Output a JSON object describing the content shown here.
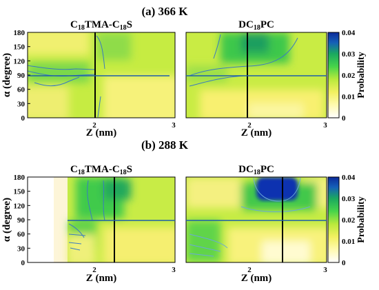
{
  "figure": {
    "panel_a_title": "(a) 366 K",
    "panel_b_title": "(b) 288 K"
  },
  "colorbar": {
    "label": "Probability",
    "min": 0,
    "max": 0.04,
    "ticks": [
      "0",
      "0.01",
      "0.02",
      "0.03",
      "0.04"
    ],
    "stops": [
      "#ffffff",
      "#fffab0",
      "#f2f060",
      "#b9ea3c",
      "#47d44a",
      "#1aa860",
      "#1560b8",
      "#0b2a9a"
    ]
  },
  "chart_data": [
    {
      "type": "heatmap",
      "panel": "a",
      "temperature": "366 K",
      "title": "C18TMA-C18S",
      "xlabel": "Z (nm)",
      "ylabel": "α (degree)",
      "xlim": [
        1,
        3
      ],
      "ylim": [
        0,
        180
      ],
      "xticks": [
        "2",
        "3"
      ],
      "yticks": [
        "0",
        "30",
        "60",
        "90",
        "120",
        "150",
        "180"
      ],
      "vertical_line_x": 2.1,
      "horizontal_line_y": 90,
      "value_range": [
        0.008,
        0.03
      ]
    },
    {
      "type": "heatmap",
      "panel": "a",
      "temperature": "366 K",
      "title": "DC18PC",
      "xlabel": "Z (nm)",
      "ylabel": "",
      "xlim": [
        1,
        3
      ],
      "ylim": [
        0,
        180
      ],
      "xticks": [
        "2",
        "3"
      ],
      "yticks": [],
      "vertical_line_x": 2.1,
      "horizontal_line_y": 90,
      "value_range": [
        0.005,
        0.032
      ]
    },
    {
      "type": "heatmap",
      "panel": "b",
      "temperature": "288 K",
      "title": "C18TMA-C18S",
      "xlabel": "Z (nm)",
      "ylabel": "α (degree)",
      "xlim": [
        1,
        3
      ],
      "ylim": [
        0,
        180
      ],
      "xticks": [
        "2",
        "3"
      ],
      "yticks": [
        "0",
        "30",
        "60",
        "90",
        "120",
        "150",
        "180"
      ],
      "vertical_line_x": 2.3,
      "horizontal_line_y": 90,
      "value_range": [
        0,
        0.03
      ]
    },
    {
      "type": "heatmap",
      "panel": "b",
      "temperature": "288 K",
      "title": "DC18PC",
      "xlabel": "Z (nm)",
      "ylabel": "",
      "xlim": [
        1,
        3
      ],
      "ylim": [
        0,
        180
      ],
      "xticks": [
        "2",
        "3"
      ],
      "yticks": [],
      "vertical_line_x": 2.5,
      "horizontal_line_y": 90,
      "value_range": [
        0.005,
        0.04
      ]
    }
  ]
}
